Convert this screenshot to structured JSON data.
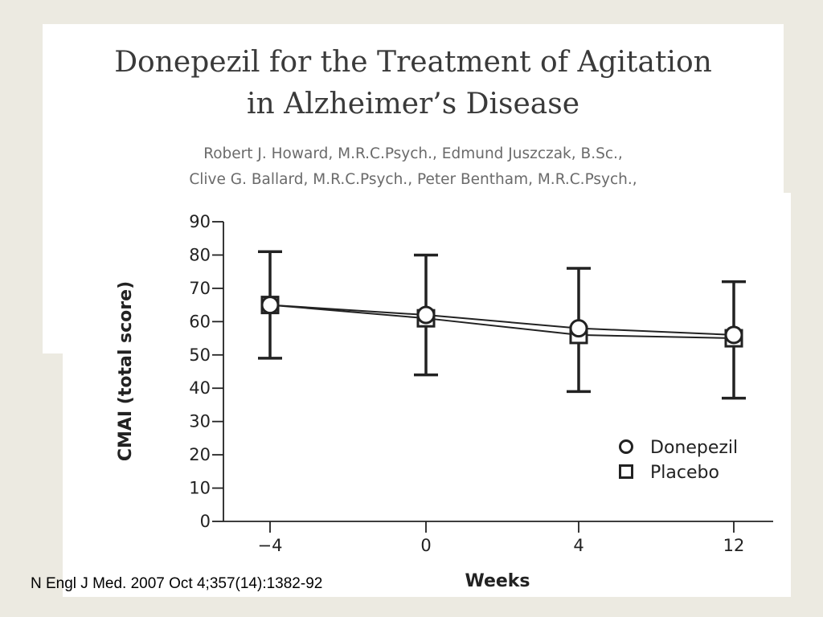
{
  "header": {
    "title_lines": [
      "Donepezil for the Treatment of Agitation",
      "in Alzheimer’s Disease"
    ],
    "authors_lines": [
      "Robert J. Howard, M.R.C.Psych., Edmund Juszczak, B.Sc.,",
      "Clive G. Ballard, M.R.C.Psych., Peter Bentham, M.R.C.Psych.,"
    ]
  },
  "citation": "N Engl J Med. 2007 Oct 4;357(14):1382-92",
  "chart_data": {
    "type": "line",
    "xlabel": "Weeks",
    "ylabel": "CMAI (total score)",
    "ylim": [
      0,
      90
    ],
    "y_ticks": [
      0,
      10,
      20,
      30,
      40,
      50,
      60,
      70,
      80,
      90
    ],
    "x_categories": [
      "−4",
      "0",
      "4",
      "12"
    ],
    "legend_position": "bottom-right",
    "series": [
      {
        "name": "Donepezil",
        "marker": "circle",
        "values": [
          65,
          62,
          58,
          56
        ]
      },
      {
        "name": "Placebo",
        "marker": "square",
        "values": [
          65,
          61,
          56,
          55
        ]
      }
    ],
    "error_bars": [
      {
        "low": 49,
        "high": 81
      },
      {
        "low": 44,
        "high": 80
      },
      {
        "low": 39,
        "high": 76
      },
      {
        "low": 37,
        "high": 72
      }
    ]
  }
}
